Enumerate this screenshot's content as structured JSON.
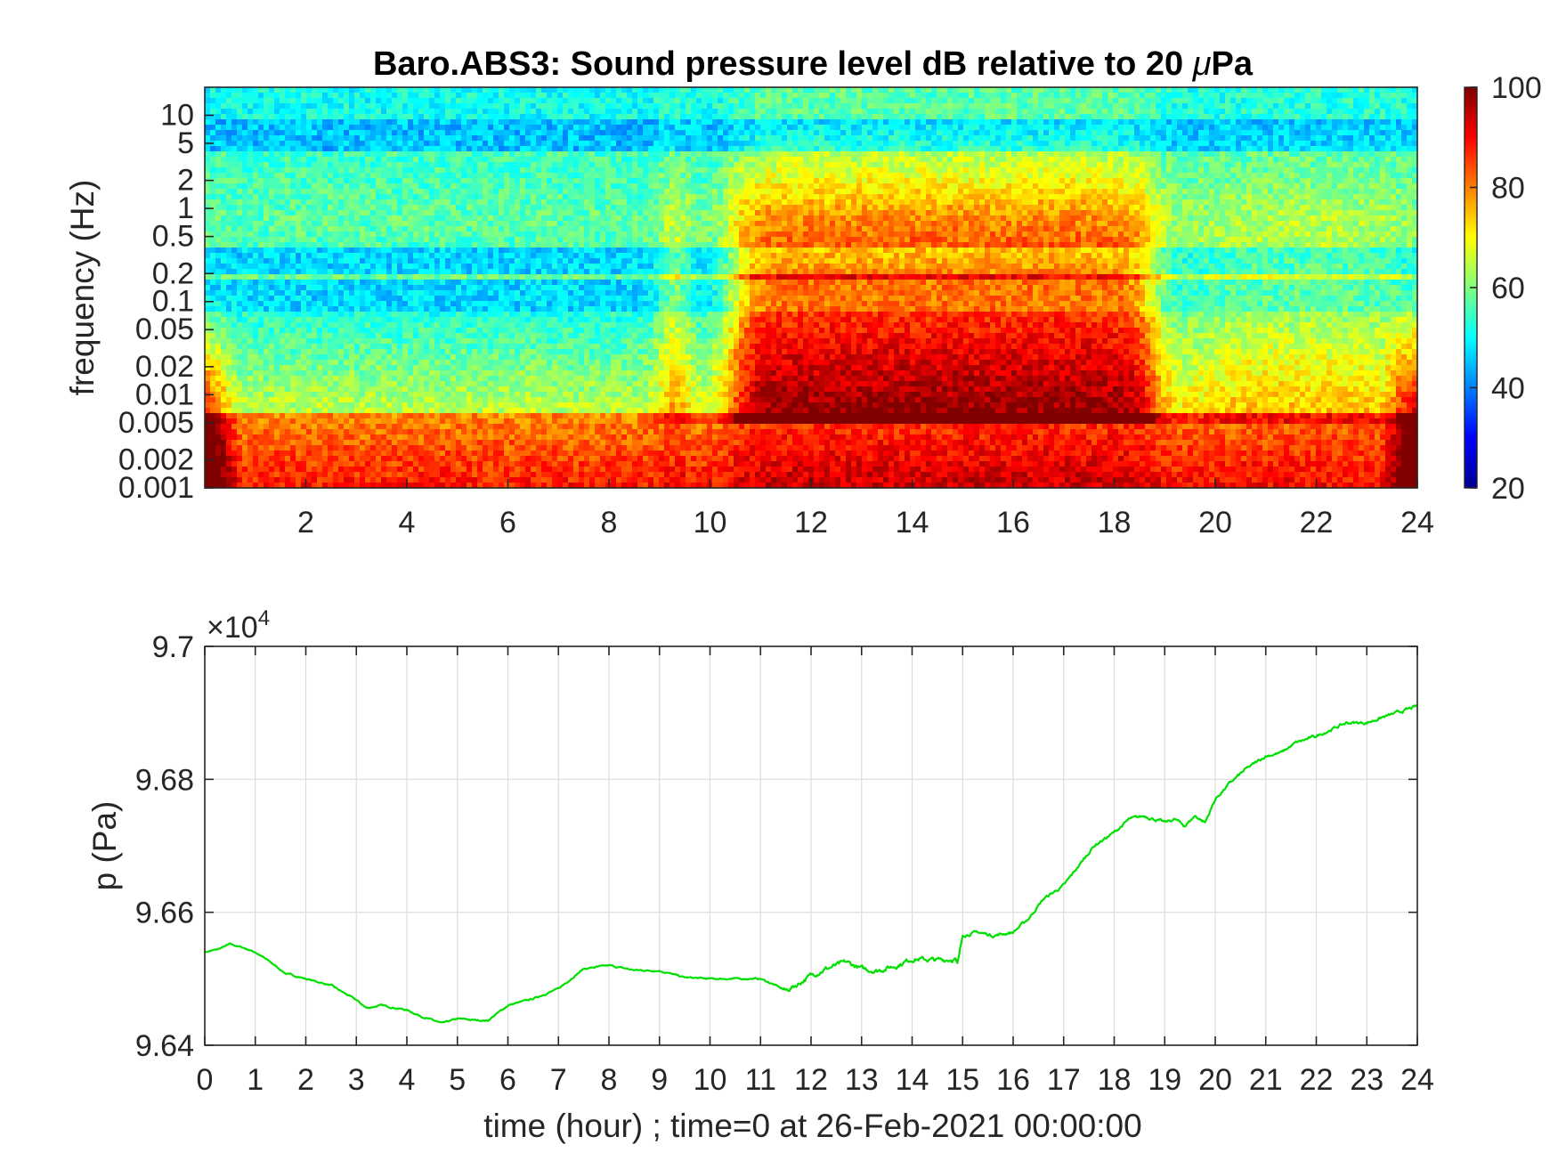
{
  "chart_data": [
    {
      "type": "heatmap",
      "title_main": "Baro.ABS3: Sound pressure level dB relative to 20 ",
      "title_mu": "μ",
      "title_unit": "Pa",
      "ylabel": "frequency (Hz)",
      "xlabel": "",
      "y_scale": "log",
      "xlim": [
        0,
        24
      ],
      "ylim": [
        0.001,
        20
      ],
      "x_ticks": [
        "2",
        "4",
        "6",
        "8",
        "10",
        "12",
        "14",
        "16",
        "18",
        "20",
        "22",
        "24"
      ],
      "y_ticks": [
        "10",
        "5",
        "2",
        "1",
        "0.5",
        "0.2",
        "0.1",
        "0.05",
        "0.02",
        "0.01",
        "0.005",
        "0.002",
        "0.001"
      ],
      "colormap": "jet",
      "colorbar": {
        "min": 20,
        "max": 100,
        "ticks": [
          "100",
          "80",
          "60",
          "40",
          "20"
        ]
      },
      "grid": false,
      "quiet_periods_hours": [
        [
          0,
          10.4
        ],
        [
          18.8,
          24
        ]
      ],
      "active_periods_hours": [
        [
          10.4,
          18.8
        ]
      ],
      "typical_level_db": {
        "quiet_0p5_to_5hz": 45,
        "active_0p01_to_0p1hz": 85,
        "low_freq_below_0p003hz": 85
      }
    },
    {
      "type": "line",
      "title": "",
      "xlabel": "time (hour) ; time=0 at 26-Feb-2021 00:00:00",
      "ylabel": "p (Pa)",
      "y_exponent_prefix": "×10",
      "y_exponent": "4",
      "xlim": [
        0,
        24
      ],
      "ylim": [
        96400,
        97000
      ],
      "x_ticks": [
        "0",
        "1",
        "2",
        "3",
        "4",
        "5",
        "6",
        "7",
        "8",
        "9",
        "10",
        "11",
        "12",
        "13",
        "14",
        "15",
        "16",
        "17",
        "18",
        "19",
        "20",
        "21",
        "22",
        "23",
        "24"
      ],
      "y_ticks": [
        "9.7",
        "9.68",
        "9.66",
        "9.64"
      ],
      "grid": true,
      "line_color": "#00e000",
      "series": [
        {
          "x": [
            0,
            0.25,
            0.5,
            0.75,
            1,
            1.3,
            1.6,
            2,
            2.5,
            3,
            3.2,
            3.5,
            4,
            4.3,
            4.7,
            5,
            5.3,
            5.6,
            6,
            6.5,
            7,
            7.5,
            8,
            8.5,
            9,
            9.5,
            10,
            10.5,
            11,
            11.3,
            11.5,
            11.7,
            12,
            12.3,
            12.7,
            13,
            13.3,
            13.7,
            14,
            14.5,
            14.85,
            14.9,
            15,
            15.3,
            15.6,
            16,
            16.3,
            16.6,
            17,
            17.3,
            17.6,
            18,
            18.3,
            18.6,
            18.8,
            19,
            19.2,
            19.4,
            19.6,
            19.8,
            20,
            20.3,
            20.6,
            21,
            21.3,
            21.6,
            22,
            22.3,
            22.6,
            23,
            23.3,
            23.6,
            24
          ],
          "y": [
            96540,
            96544,
            96552,
            96547,
            96540,
            96525,
            96508,
            96500,
            96490,
            96468,
            96456,
            96460,
            96453,
            96443,
            96433,
            96440,
            96438,
            96437,
            96460,
            96470,
            96485,
            96515,
            96520,
            96513,
            96512,
            96502,
            96500,
            96500,
            96500,
            96490,
            96482,
            96490,
            96505,
            96515,
            96525,
            96515,
            96512,
            96520,
            96530,
            96528,
            96530,
            96520,
            96565,
            96570,
            96565,
            96570,
            96590,
            96620,
            96640,
            96670,
            96700,
            96720,
            96740,
            96745,
            96740,
            96735,
            96740,
            96730,
            96745,
            96735,
            96770,
            96795,
            96815,
            96835,
            96840,
            96855,
            96865,
            96875,
            96885,
            96885,
            96893,
            96900,
            96910
          ]
        }
      ]
    }
  ]
}
